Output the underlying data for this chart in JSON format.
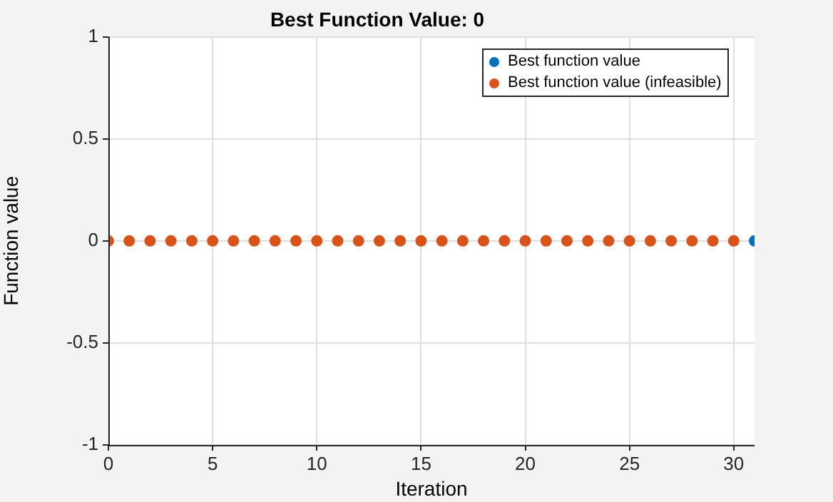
{
  "chart_data": {
    "type": "scatter",
    "title": "Best Function Value: 0",
    "xlabel": "Iteration",
    "ylabel": "Function value",
    "xlim": [
      0,
      31
    ],
    "xticks": [
      0,
      5,
      10,
      15,
      20,
      25,
      30
    ],
    "ylim": [
      -1,
      1
    ],
    "yticks": [
      -1,
      -0.5,
      0,
      0.5,
      1
    ],
    "grid": true,
    "legend": "top right",
    "marker": "circle",
    "series": [
      {
        "name": "Best function value",
        "color": "#0072bd",
        "x": [
          31
        ],
        "values": [
          0
        ]
      },
      {
        "name": "Best function value (infeasible)",
        "color": "#d95319",
        "x": [
          0,
          1,
          2,
          3,
          4,
          5,
          6,
          7,
          8,
          9,
          10,
          11,
          12,
          13,
          14,
          15,
          16,
          17,
          18,
          19,
          20,
          21,
          22,
          23,
          24,
          25,
          26,
          27,
          28,
          29,
          30
        ],
        "values": [
          0,
          0,
          0,
          0,
          0,
          0,
          0,
          0,
          0,
          0,
          0,
          0,
          0,
          0,
          0,
          0,
          0,
          0,
          0,
          0,
          0,
          0,
          0,
          0,
          0,
          0,
          0,
          0,
          0,
          0,
          0
        ]
      }
    ]
  }
}
